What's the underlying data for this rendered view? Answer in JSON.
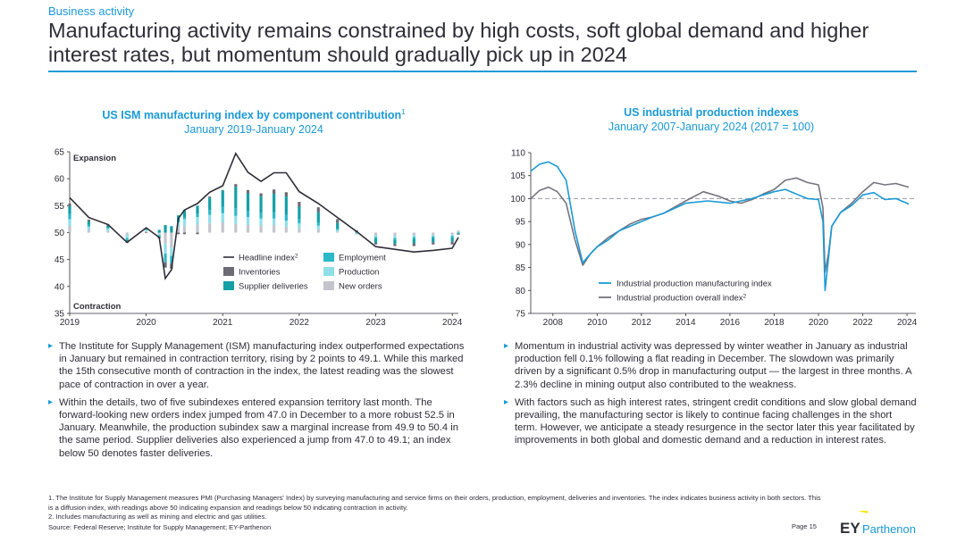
{
  "section_label": "Business activity",
  "title": "Manufacturing activity remains constrained by high costs, soft global demand and higher interest rates, but momentum should gradually pick up in 2024",
  "left_chart": {
    "title": "US ISM manufacturing index by component contribution",
    "title_sup": "1",
    "subtitle": "January 2019-January 2024",
    "zone_top": "Expansion",
    "zone_bottom": "Contraction",
    "legend": [
      {
        "label": "Headline index",
        "sup": "2",
        "kind": "line",
        "color": "#2e2e38"
      },
      {
        "label": "Employment",
        "kind": "box",
        "color": "#2bb8c8"
      },
      {
        "label": "Inventories",
        "kind": "box",
        "color": "#6b6b76"
      },
      {
        "label": "Production",
        "kind": "box",
        "color": "#8fdfe8"
      },
      {
        "label": "Supplier deliveries",
        "kind": "box",
        "color": "#12a0a6"
      },
      {
        "label": "New orders",
        "kind": "box",
        "color": "#c4c4cd"
      }
    ],
    "x_ticks": [
      "2019",
      "2020",
      "2021",
      "2022",
      "2023",
      "2024"
    ],
    "y_ticks": [
      "35",
      "40",
      "45",
      "50",
      "55",
      "60",
      "65"
    ]
  },
  "right_chart": {
    "title": "US industrial production indexes",
    "subtitle": "January 2007-January 2024 (2017 = 100)",
    "legend": [
      {
        "label": "Industrial production manufacturing index",
        "color": "#1a9ad6"
      },
      {
        "label": "Industrial production overall index",
        "sup": "2",
        "color": "#747480"
      }
    ],
    "x_ticks": [
      "2008",
      "2010",
      "2012",
      "2014",
      "2016",
      "2018",
      "2020",
      "2022",
      "2024"
    ],
    "y_ticks": [
      "75",
      "80",
      "85",
      "90",
      "95",
      "100",
      "105",
      "110"
    ]
  },
  "chart_data": [
    {
      "type": "bar",
      "title": "US ISM manufacturing index by component contribution",
      "subtitle": "January 2019-January 2024",
      "x_range": [
        2019.0,
        2024.08
      ],
      "ylim": [
        35,
        65
      ],
      "baseline": 50,
      "grid": false,
      "legend_position": "bottom-center",
      "x": [
        2019.0,
        2019.25,
        2019.5,
        2019.75,
        2020.0,
        2020.17,
        2020.25,
        2020.33,
        2020.42,
        2020.5,
        2020.67,
        2020.83,
        2021.0,
        2021.17,
        2021.33,
        2021.5,
        2021.67,
        2021.83,
        2022.0,
        2022.25,
        2022.5,
        2022.75,
        2023.0,
        2023.25,
        2023.5,
        2023.75,
        2024.0,
        2024.08
      ],
      "headline": [
        56.5,
        52.8,
        51.5,
        48.2,
        50.9,
        49.1,
        41.5,
        43.1,
        52.6,
        54.2,
        55.4,
        57.5,
        58.7,
        64.7,
        61.2,
        59.5,
        61.1,
        61.1,
        57.6,
        55.4,
        52.8,
        50.2,
        47.4,
        46.9,
        46.4,
        46.7,
        47.1,
        49.1
      ],
      "series": [
        {
          "name": "New orders",
          "values": [
            1.2,
            0.5,
            0.3,
            -0.4,
            0.2,
            -0.2,
            -2.0,
            -2.8,
            1.0,
            1.2,
            1.5,
            1.7,
            1.9,
            1.6,
            1.4,
            1.3,
            1.4,
            1.1,
            0.8,
            0.6,
            0.2,
            -0.2,
            -0.5,
            -0.6,
            -0.5,
            -0.4,
            -0.4,
            0.3
          ]
        },
        {
          "name": "Production",
          "values": [
            1.3,
            0.6,
            0.4,
            -0.6,
            0.3,
            -0.3,
            -1.9,
            -1.5,
            0.9,
            1.3,
            1.4,
            1.6,
            1.7,
            1.5,
            1.5,
            1.3,
            1.2,
            1.1,
            0.9,
            0.7,
            0.3,
            0.0,
            -0.3,
            -0.4,
            -0.3,
            -0.3,
            -0.2,
            0.1
          ]
        },
        {
          "name": "Employment",
          "values": [
            1.0,
            0.4,
            0.2,
            -0.4,
            0.1,
            -0.3,
            -1.6,
            -1.4,
            0.2,
            0.4,
            0.6,
            0.9,
            1.2,
            1.4,
            1.1,
            1.0,
            1.2,
            1.1,
            0.8,
            0.6,
            0.2,
            -0.1,
            -0.3,
            -0.3,
            -0.3,
            -0.3,
            -0.4,
            -0.1
          ]
        },
        {
          "name": "Supplier deliveries",
          "values": [
            1.4,
            0.6,
            0.4,
            -0.2,
            0.3,
            0.5,
            1.4,
            1.2,
            1.1,
            1.3,
            1.5,
            2.3,
            3.0,
            4.0,
            3.3,
            3.1,
            3.4,
            3.4,
            2.3,
            1.9,
            1.1,
            0.2,
            -0.8,
            -0.8,
            -0.9,
            -0.8,
            -0.7,
            -0.2
          ]
        },
        {
          "name": "Inventories",
          "values": [
            0.5,
            0.3,
            0.3,
            -0.3,
            -0.1,
            -0.3,
            -1.0,
            -1.0,
            -0.3,
            -0.3,
            -0.3,
            0.2,
            0.1,
            0.5,
            0.6,
            0.6,
            0.8,
            0.8,
            0.9,
            0.9,
            0.7,
            0.2,
            -0.3,
            -0.4,
            -0.5,
            -0.4,
            -0.5,
            -0.1
          ]
        }
      ]
    },
    {
      "type": "line",
      "title": "US industrial production indexes",
      "subtitle": "January 2007-January 2024 (2017 = 100)",
      "xlim": [
        2007.0,
        2024.4
      ],
      "ylim": [
        75,
        110
      ],
      "reference_line": 100,
      "grid": false,
      "legend_position": "bottom-right",
      "series": [
        {
          "name": "Industrial production manufacturing index",
          "x": [
            2007.0,
            2007.4,
            2007.8,
            2008.2,
            2008.6,
            2009.0,
            2009.35,
            2009.7,
            2010.0,
            2010.5,
            2011.0,
            2011.5,
            2012.0,
            2012.5,
            2013.0,
            2014.0,
            2015.0,
            2016.0,
            2016.5,
            2017.0,
            2017.5,
            2018.0,
            2018.5,
            2019.0,
            2019.5,
            2020.0,
            2020.2,
            2020.3,
            2020.45,
            2020.6,
            2021.0,
            2021.5,
            2022.0,
            2022.5,
            2023.0,
            2023.5,
            2024.0,
            2024.08
          ],
          "values": [
            106.0,
            107.5,
            108.0,
            107.0,
            104.0,
            93.0,
            86.0,
            88.0,
            89.5,
            91.0,
            93.0,
            94.0,
            95.0,
            96.0,
            96.8,
            99.0,
            99.5,
            99.0,
            99.5,
            100.0,
            100.8,
            101.5,
            102.0,
            101.0,
            100.0,
            99.8,
            95.0,
            80.0,
            87.0,
            94.0,
            97.0,
            98.5,
            100.8,
            101.3,
            99.8,
            100.0,
            99.0,
            98.8
          ]
        },
        {
          "name": "Industrial production overall index",
          "x": [
            2007.0,
            2007.4,
            2007.8,
            2008.2,
            2008.6,
            2009.0,
            2009.35,
            2009.7,
            2010.0,
            2010.5,
            2011.0,
            2011.5,
            2012.0,
            2012.5,
            2013.0,
            2014.0,
            2014.8,
            2015.5,
            2016.0,
            2016.5,
            2017.0,
            2017.5,
            2018.0,
            2018.5,
            2019.0,
            2019.5,
            2020.0,
            2020.2,
            2020.3,
            2020.45,
            2020.6,
            2021.0,
            2021.5,
            2022.0,
            2022.5,
            2023.0,
            2023.5,
            2024.0,
            2024.08
          ],
          "values": [
            100.0,
            101.8,
            102.5,
            101.5,
            99.0,
            91.0,
            85.5,
            88.0,
            89.5,
            91.5,
            93.0,
            94.5,
            95.5,
            96.0,
            96.8,
            99.5,
            101.5,
            100.5,
            99.5,
            99.0,
            99.8,
            101.0,
            102.0,
            104.0,
            104.5,
            103.5,
            103.0,
            98.0,
            84.0,
            88.0,
            94.0,
            97.0,
            99.0,
            101.5,
            103.5,
            103.0,
            103.3,
            102.6,
            102.5
          ]
        }
      ]
    }
  ],
  "left_bullets": [
    "The Institute for Supply Management (ISM) manufacturing index outperformed expectations in January but remained in contraction territory, rising by 2 points to 49.1. While this marked the 15th consecutive month of contraction in the index, the latest reading was the slowest pace of contraction in over a year.",
    "Within the details, two of five subindexes entered expansion territory last month. The forward-looking new orders index jumped from 47.0 in December to a more robust 52.5 in January. Meanwhile, the production subindex saw a marginal increase from 49.9 to 50.4 in the same period. Supplier deliveries also experienced a jump from 47.0 to 49.1; an index below 50 denotes faster deliveries."
  ],
  "right_bullets": [
    "Momentum in industrial activity was depressed by winter weather in January as industrial production fell 0.1% following a flat reading in December. The slowdown was primarily driven by a significant 0.5% drop in manufacturing output — the largest in three months. A 2.3% decline in mining output also contributed to the weakness.",
    "With factors such as high interest rates, stringent credit conditions and slow global demand prevailing, the manufacturing sector is likely to continue facing challenges in the short term. However, we anticipate a steady resurgence in the sector later this year facilitated by improvements in both global and domestic demand and a reduction in interest rates."
  ],
  "footnotes": {
    "note1": "1. The Institute for Supply Management measures PMI (Purchasing Managers' Index) by surveying manufacturing and service firms on their orders, production, employment, deliveries and inventories. The index indicates business activity in both sectors. This is a diffusion index, with readings above 50 indicating expansion and readings below 50 indicating contraction in activity.",
    "note2": "2. Includes manufacturing as well as mining and electric and gas utilities.",
    "source": "Source: Federal Reserve; Institute for Supply Management; EY-Parthenon"
  },
  "page_number": "Page 15",
  "logo": {
    "brand": "EY",
    "name": "Parthenon",
    "color": "#1a9ad6"
  }
}
